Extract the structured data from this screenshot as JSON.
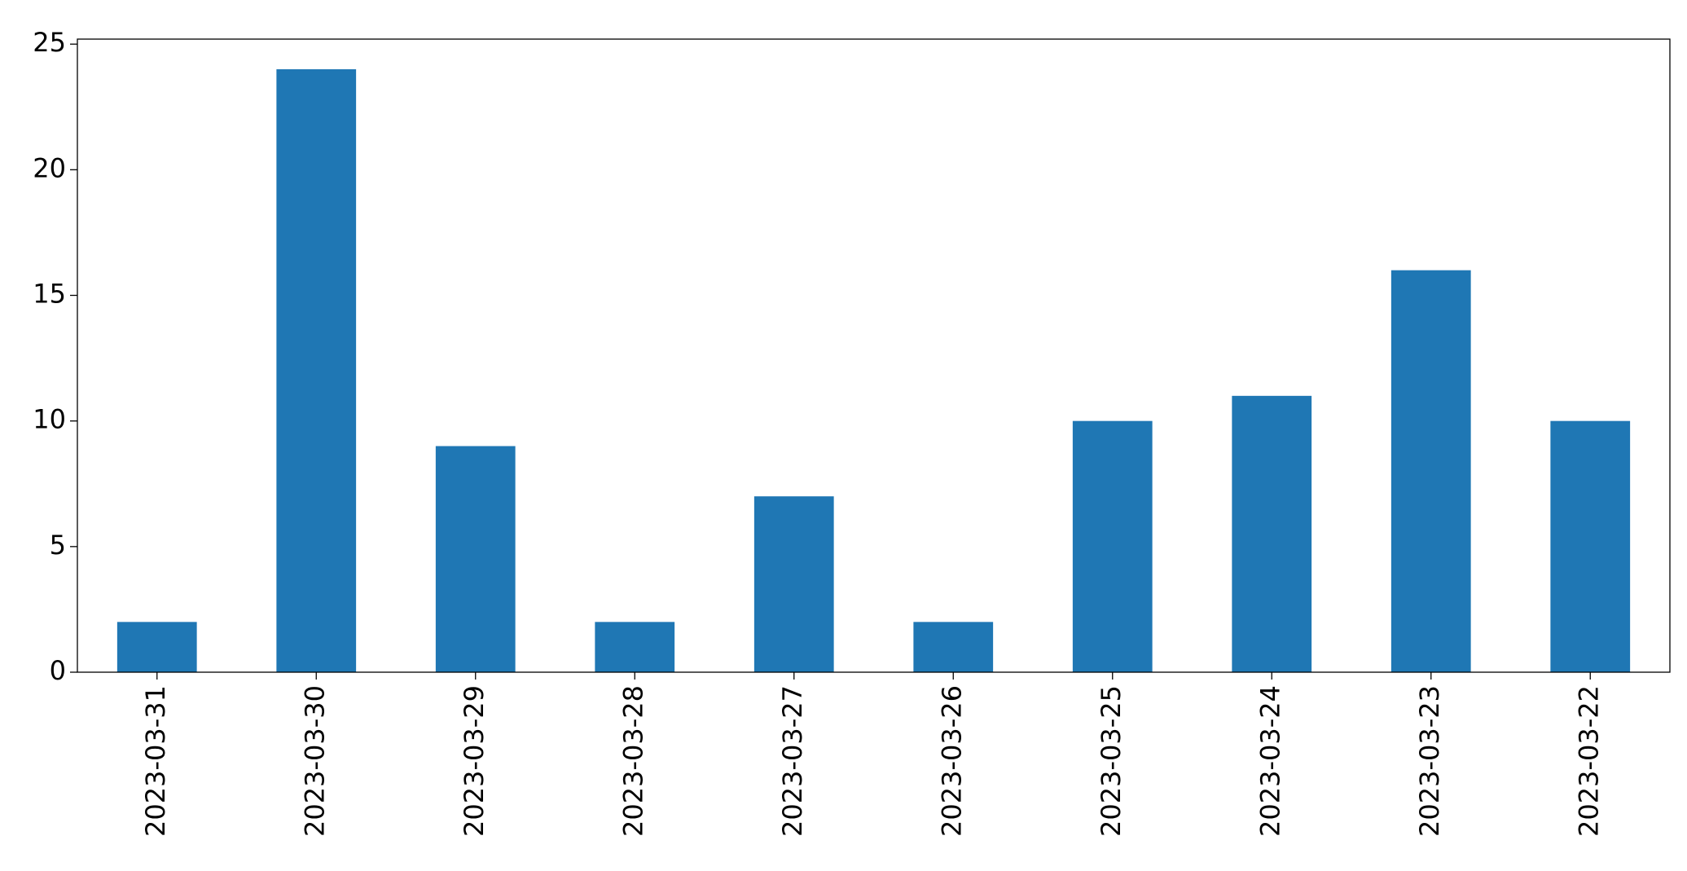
{
  "chart_data": {
    "type": "bar",
    "categories": [
      "2023-03-31",
      "2023-03-30",
      "2023-03-29",
      "2023-03-28",
      "2023-03-27",
      "2023-03-26",
      "2023-03-25",
      "2023-03-24",
      "2023-03-23",
      "2023-03-22"
    ],
    "values": [
      2,
      24,
      9,
      2,
      7,
      2,
      10,
      11,
      16,
      10
    ],
    "color": "#1f77b4",
    "ylim": [
      0,
      25.2
    ],
    "yticks": [
      0,
      5,
      10,
      15,
      20,
      25
    ],
    "grid": false
  }
}
